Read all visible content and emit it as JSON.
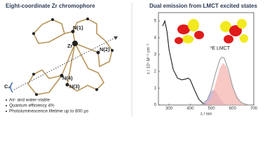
{
  "left": {
    "title": "Eight-coordinate Zr chromophore",
    "atom_labels": [
      "Zr",
      "N(1)",
      "N(2)",
      "N(3)",
      "N(4)",
      "C₂"
    ],
    "bullets": [
      "Air- and water-stable",
      "Quantum efficiency 4%",
      "Photoluminescence lifetime up to 800 µs"
    ]
  },
  "chart_data": {
    "type": "line",
    "title": "Dual emission from LMCT excited states",
    "xlabel": "λ / nm",
    "ylabel": "ε / 10⁴ M⁻¹ cm⁻¹",
    "annotation": "³E LMCT",
    "xlim": [
      250,
      700
    ],
    "xticks": [
      300,
      400,
      500,
      600,
      700
    ],
    "ylim": [
      0,
      5.5
    ],
    "yticks": [
      0,
      1,
      2,
      3,
      4,
      5
    ],
    "series": [
      {
        "name": "absorption",
        "style": "line",
        "color": "#1a1a1a",
        "x": [
          270,
          280,
          290,
          300,
          320,
          340,
          360,
          380,
          390,
          400,
          420,
          440,
          460,
          480,
          500
        ],
        "values": [
          4.7,
          5.0,
          4.4,
          3.3,
          2.1,
          1.6,
          1.5,
          1.55,
          1.6,
          1.5,
          0.9,
          0.35,
          0.1,
          0.02,
          0
        ]
      },
      {
        "name": "emission high-energy",
        "style": "area",
        "color": "#b9a3cf",
        "x": [
          460,
          480,
          500,
          510,
          520,
          540,
          560,
          580
        ],
        "values": [
          0,
          0.3,
          0.8,
          0.9,
          0.8,
          0.4,
          0.1,
          0
        ]
      },
      {
        "name": "emission low-energy",
        "style": "area",
        "color": "#f4b6b0",
        "x": [
          470,
          500,
          520,
          540,
          555,
          570,
          590,
          610,
          630,
          650,
          680
        ],
        "values": [
          0,
          0.4,
          1.3,
          2.2,
          2.5,
          2.3,
          1.6,
          0.8,
          0.3,
          0.1,
          0
        ]
      },
      {
        "name": "emission total",
        "style": "line",
        "color": "#9a9a9a",
        "x": [
          450,
          480,
          500,
          520,
          540,
          550,
          560,
          580,
          600,
          620,
          640,
          660,
          680
        ],
        "values": [
          0,
          0.3,
          0.9,
          1.9,
          2.7,
          2.85,
          2.8,
          2.1,
          1.1,
          0.45,
          0.15,
          0.05,
          0
        ]
      }
    ]
  }
}
